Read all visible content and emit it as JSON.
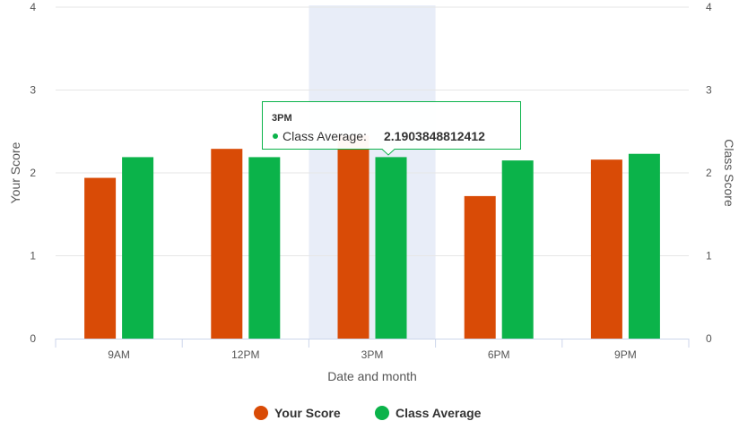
{
  "chart_data": {
    "type": "bar",
    "categories": [
      "9AM",
      "12PM",
      "3PM",
      "6PM",
      "9PM"
    ],
    "series": [
      {
        "name": "Your Score",
        "color": "#d94b06",
        "values": [
          1.94,
          2.29,
          2.45,
          1.72,
          2.16
        ]
      },
      {
        "name": "Class Average",
        "color": "#0bb34a",
        "values": [
          2.19,
          2.19,
          2.1903848812412,
          2.15,
          2.23
        ]
      }
    ],
    "xlabel": "Date and month",
    "ylabel_left": "Your Score",
    "ylabel_right": "Class Score",
    "ylim": [
      0,
      4
    ],
    "yticks": [
      "0",
      "1",
      "2",
      "3",
      "4"
    ],
    "grid": true,
    "legend_position": "bottom-center",
    "highlight_category": "3PM",
    "highlight_color": "#e8edf8",
    "tooltip": {
      "title": "3PM",
      "series": "Class Average",
      "label": "Class Average:",
      "value": "2.1903848812412",
      "border_color": "#0bb34a"
    }
  }
}
